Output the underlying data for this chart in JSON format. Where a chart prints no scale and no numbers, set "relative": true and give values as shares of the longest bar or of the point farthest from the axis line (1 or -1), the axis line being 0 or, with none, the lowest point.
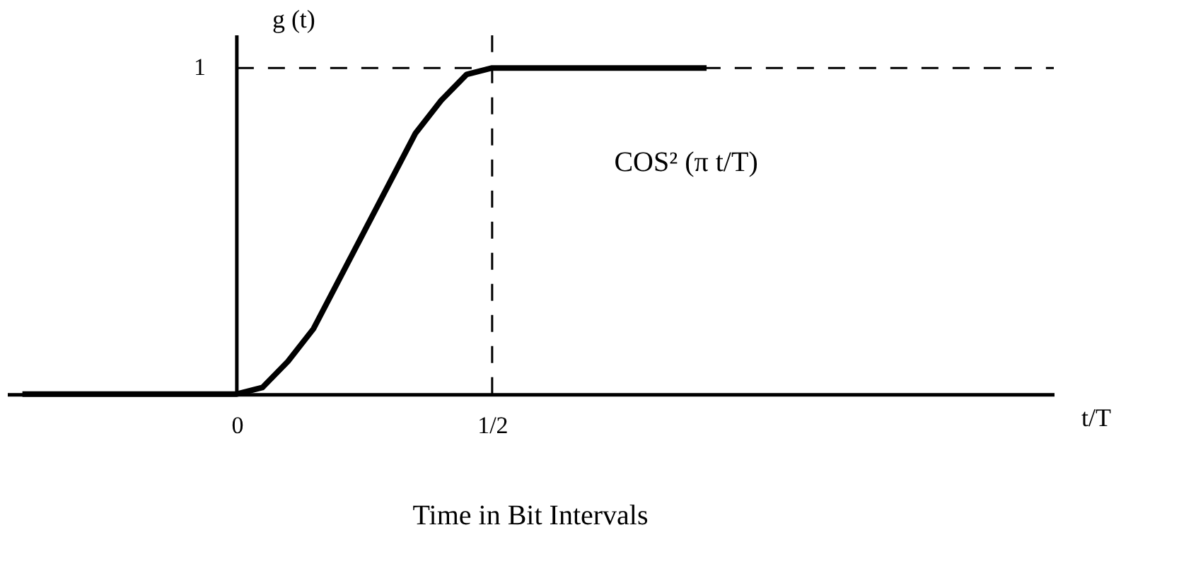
{
  "chart_data": {
    "type": "line",
    "xlabel": "t/T",
    "ylabel": "g (t)",
    "relative": true,
    "x": [
      -0.42,
      0,
      0.05,
      0.1,
      0.15,
      0.2,
      0.25,
      0.3,
      0.35,
      0.4,
      0.45,
      0.5,
      0.92
    ],
    "series": [
      {
        "color": "#000000",
        "values": [
          0,
          0,
          0.02,
          0.1,
          0.2,
          0.35,
          0.5,
          0.65,
          0.8,
          0.9,
          0.98,
          1,
          1
        ]
      }
    ],
    "xlim": [
      -0.45,
      1.6
    ],
    "xticks": [
      0,
      {
        "value": 0.5,
        "label": "1/2"
      }
    ],
    "ref_lines": [
      {
        "axis": "y",
        "value": 1,
        "line_style": "dashed",
        "color": "#000000"
      },
      {
        "axis": "x",
        "value": 0.5,
        "line_style": "dashed",
        "color": "#000000"
      }
    ],
    "annotations": [
      {
        "text": "1",
        "x": 0,
        "y": 1
      },
      "COS² (π t/T)",
      "Time in Bit Intervals"
    ],
    "grid": false,
    "marker": "none",
    "line_style": "solid"
  }
}
